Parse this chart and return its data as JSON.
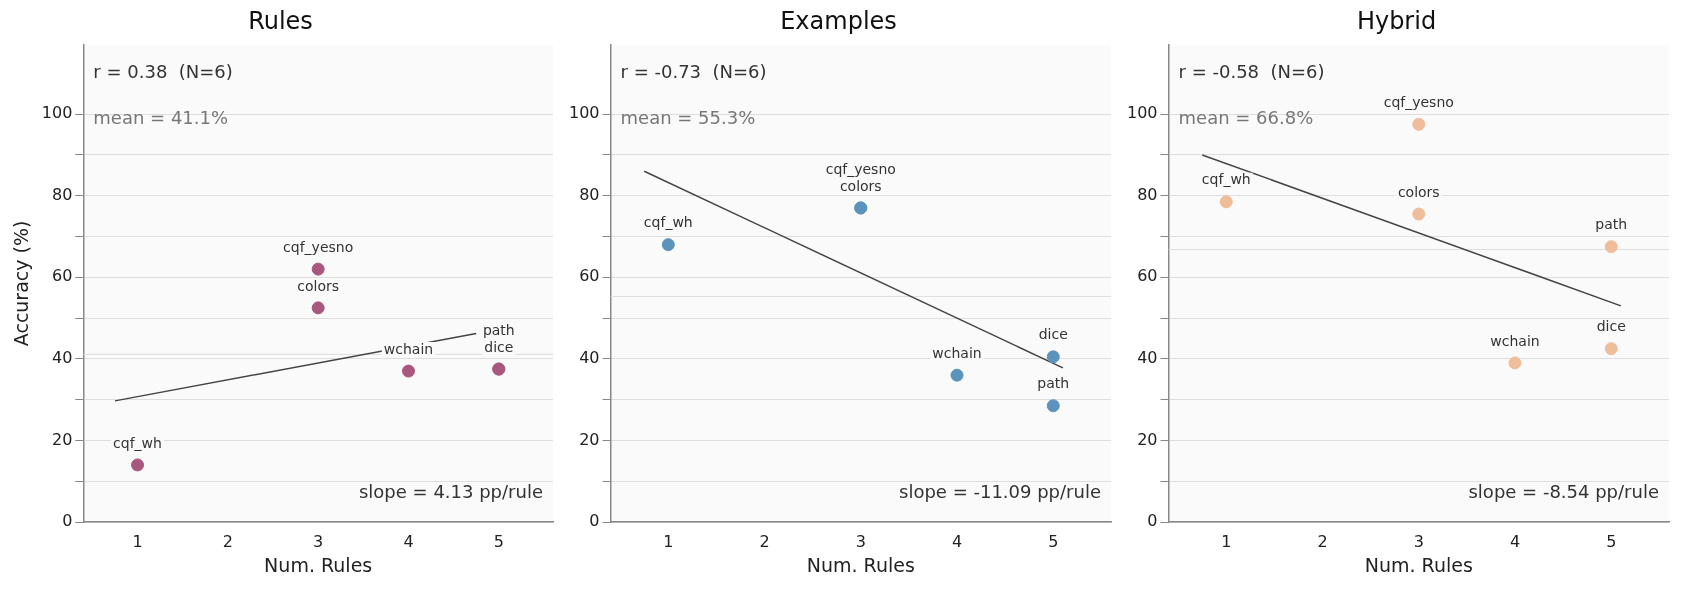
{
  "chart_data": [
    {
      "type": "scatter",
      "title": "Rules",
      "xlabel": "Num. Rules",
      "ylabel": "Accuracy (%)",
      "xlim": [
        0.4,
        5.6
      ],
      "xticks": [
        1,
        2,
        3,
        4,
        5
      ],
      "ylim": [
        0,
        117
      ],
      "yticks": [
        0,
        {
          "value": 10,
          "label": null
        },
        20,
        {
          "value": 30,
          "label": null
        },
        40,
        {
          "value": 50,
          "label": null
        },
        60,
        {
          "value": 70,
          "label": null
        },
        80,
        {
          "value": 90,
          "label": null
        },
        100
      ],
      "grid": "y",
      "legend": false,
      "series": [
        {
          "type": "scatter",
          "marker": "circle",
          "color": "#a8577e",
          "x": [
            1,
            3,
            3,
            4,
            5,
            5
          ],
          "values": [
            14,
            62,
            52.5,
            37,
            37.5,
            37.5
          ]
        },
        {
          "type": "line",
          "color": "#444444",
          "line_style": "solid",
          "x": [
            0.75,
            4.75
          ],
          "values": [
            29.7,
            46.2
          ]
        }
      ],
      "ref_lines": [
        {
          "axis": "y",
          "value": 41.1,
          "color": "#dddddd"
        }
      ],
      "annotations": [
        "r = 0.38  (N=6)",
        "mean = 41.1%",
        "slope = 4.13 pp/rule",
        {
          "text": "cqf_wh",
          "x": 1,
          "y": 14
        },
        {
          "text": "cqf_yesno",
          "x": 3,
          "y": 62
        },
        {
          "text": "colors",
          "x": 3,
          "y": 52.5
        },
        {
          "text": "wchain",
          "x": 4,
          "y": 37
        },
        {
          "text": "dice",
          "x": 5,
          "y": 37.5
        },
        {
          "text": "path",
          "x": 5,
          "y": 37.5
        }
      ]
    },
    {
      "type": "scatter",
      "title": "Examples",
      "xlabel": "Num. Rules",
      "xlim": [
        0.4,
        5.6
      ],
      "xticks": [
        1,
        2,
        3,
        4,
        5
      ],
      "ylim": [
        0,
        117
      ],
      "yticks": [
        0,
        {
          "value": 10,
          "label": null
        },
        20,
        {
          "value": 30,
          "label": null
        },
        40,
        {
          "value": 50,
          "label": null
        },
        60,
        {
          "value": 70,
          "label": null
        },
        80,
        {
          "value": 90,
          "label": null
        },
        100
      ],
      "grid": "y",
      "legend": false,
      "series": [
        {
          "type": "scatter",
          "marker": "circle",
          "color": "#5b93bd",
          "x": [
            1,
            3,
            3,
            4,
            5,
            5
          ],
          "values": [
            68,
            77,
            77,
            36,
            40.5,
            28.5
          ]
        },
        {
          "type": "line",
          "color": "#444444",
          "line_style": "solid",
          "x": [
            0.75,
            5.1
          ],
          "values": [
            86,
            37.8
          ]
        }
      ],
      "ref_lines": [
        {
          "axis": "y",
          "value": 55.3,
          "color": "#dddddd"
        }
      ],
      "annotations": [
        "r = -0.73  (N=6)",
        "mean = 55.3%",
        "slope = -11.09 pp/rule",
        {
          "text": "cqf_wh",
          "x": 1,
          "y": 68
        },
        {
          "text": "colors",
          "x": 3,
          "y": 77
        },
        {
          "text": "cqf_yesno",
          "x": 3,
          "y": 77
        },
        {
          "text": "wchain",
          "x": 4,
          "y": 36
        },
        {
          "text": "dice",
          "x": 5,
          "y": 40.5
        },
        {
          "text": "path",
          "x": 5,
          "y": 28.5
        }
      ]
    },
    {
      "type": "scatter",
      "title": "Hybrid",
      "xlabel": "Num. Rules",
      "xlim": [
        0.4,
        5.6
      ],
      "xticks": [
        1,
        2,
        3,
        4,
        5
      ],
      "ylim": [
        0,
        117
      ],
      "yticks": [
        0,
        {
          "value": 10,
          "label": null
        },
        20,
        {
          "value": 30,
          "label": null
        },
        40,
        {
          "value": 50,
          "label": null
        },
        60,
        {
          "value": 70,
          "label": null
        },
        80,
        {
          "value": 90,
          "label": null
        },
        100
      ],
      "grid": "y",
      "legend": false,
      "series": [
        {
          "type": "scatter",
          "marker": "circle",
          "color": "#f0bd9a",
          "x": [
            1,
            3,
            3,
            4,
            5,
            5
          ],
          "values": [
            78.5,
            97.5,
            75.5,
            39,
            67.5,
            42.5
          ]
        },
        {
          "type": "line",
          "color": "#444444",
          "line_style": "solid",
          "x": [
            0.75,
            5.1
          ],
          "values": [
            90,
            53
          ]
        }
      ],
      "ref_lines": [
        {
          "axis": "y",
          "value": 66.8,
          "color": "#dddddd"
        }
      ],
      "annotations": [
        "r = -0.58  (N=6)",
        "mean = 66.8%",
        "slope = -8.54 pp/rule",
        {
          "text": "cqf_wh",
          "x": 1,
          "y": 78.5
        },
        {
          "text": "cqf_yesno",
          "x": 3,
          "y": 97.5
        },
        {
          "text": "colors",
          "x": 3,
          "y": 75.5
        },
        {
          "text": "wchain",
          "x": 4,
          "y": 39
        },
        {
          "text": "path",
          "x": 5,
          "y": 67.5
        },
        {
          "text": "dice",
          "x": 5,
          "y": 42.5
        }
      ]
    }
  ]
}
